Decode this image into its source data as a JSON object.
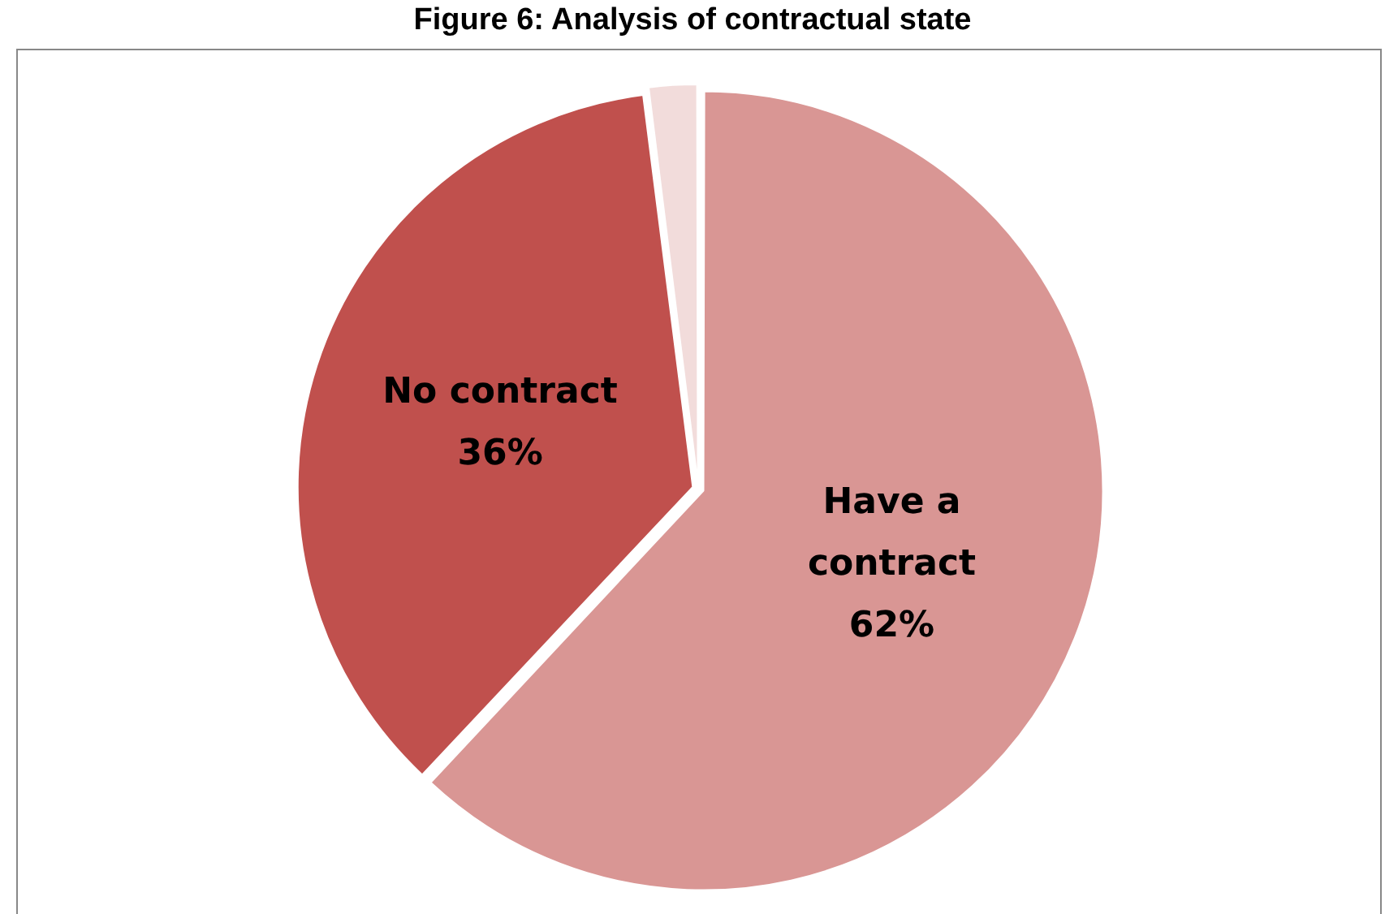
{
  "chart_data": {
    "type": "pie",
    "title": "Figure 6: Analysis of contractual state",
    "categories": [
      "Have a contract",
      "No contract",
      null
    ],
    "values": [
      62,
      36,
      2
    ],
    "value_labels": [
      "62%",
      "36%",
      null
    ],
    "colors": [
      "#d99694",
      "#c0504d",
      "#f2dcdb"
    ],
    "legend": false
  }
}
